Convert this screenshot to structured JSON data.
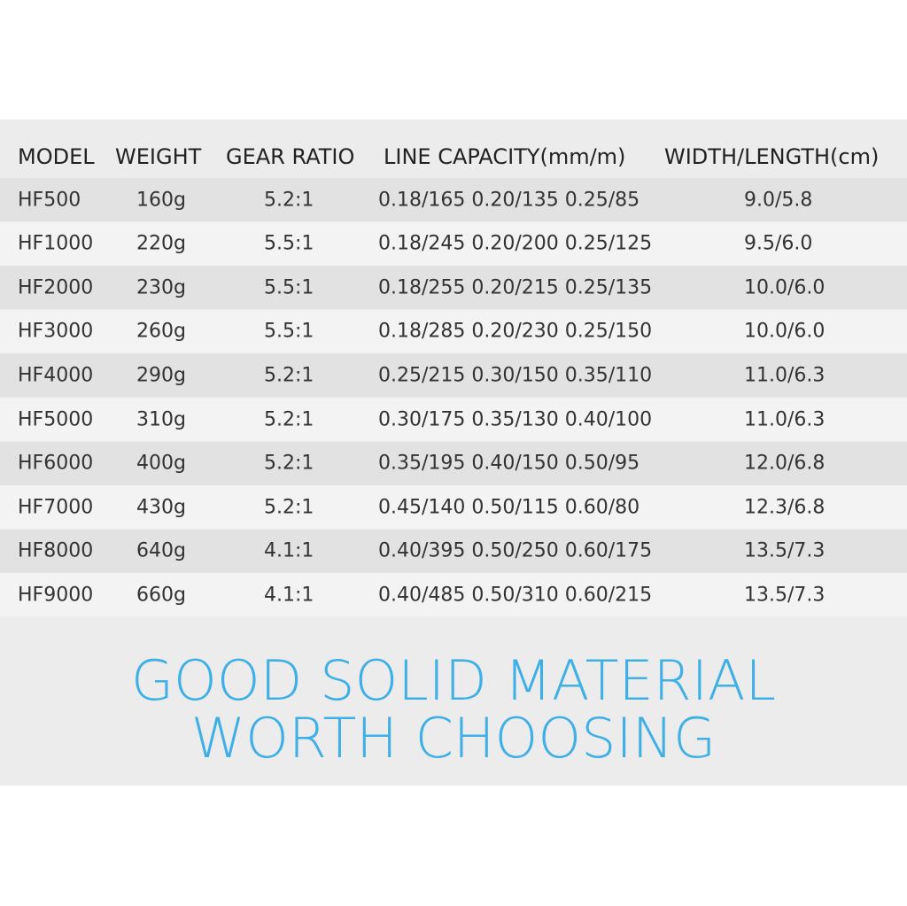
{
  "table": {
    "header": [
      "MODEL",
      "WEIGHT",
      "GEAR RATIO",
      "LINE CAPACITY(mm/m)",
      "WIDTH/LENGTH(cm)"
    ],
    "rows": [
      [
        "HF500",
        "160g",
        "5.2:1",
        "0.18/165 0.20/135 0.25/85",
        "9.0/5.8"
      ],
      [
        "HF1000",
        "220g",
        "5.5:1",
        "0.18/245 0.20/200 0.25/125",
        "9.5/6.0"
      ],
      [
        "HF2000",
        "230g",
        "5.5:1",
        "0.18/255 0.20/215 0.25/135",
        "10.0/6.0"
      ],
      [
        "HF3000",
        "260g",
        "5.5:1",
        "0.18/285 0.20/230 0.25/150",
        "10.0/6.0"
      ],
      [
        "HF4000",
        "290g",
        "5.2:1",
        "0.25/215 0.30/150 0.35/110",
        "11.0/6.3"
      ],
      [
        "HF5000",
        "310g",
        "5.2:1",
        "0.30/175 0.35/130 0.40/100",
        "11.0/6.3"
      ],
      [
        "HF6000",
        "400g",
        "5.2:1",
        "0.35/195 0.40/150 0.50/95",
        "12.0/6.8"
      ],
      [
        "HF7000",
        "430g",
        "5.2:1",
        "0.45/140 0.50/115 0.60/80",
        "12.3/6.8"
      ],
      [
        "HF8000",
        "640g",
        "4.1:1",
        "0.40/395 0.50/250 0.60/175",
        "13.5/7.3"
      ],
      [
        "HF9000",
        "660g",
        "4.1:1",
        "0.40/485 0.50/310 0.60/215",
        "13.5/7.3"
      ]
    ]
  },
  "slogan": [
    "GOOD SOLID MATERIAL",
    "WORTH CHOOSING"
  ]
}
